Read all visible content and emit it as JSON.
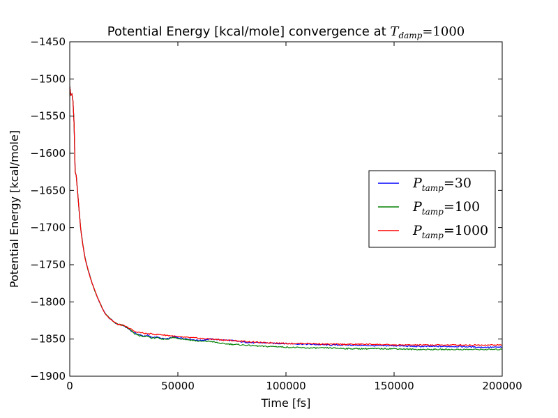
{
  "chart_data": {
    "type": "line",
    "title": {
      "text": "Potential Energy [kcal/mole] convergence at ",
      "math_symbol": "T",
      "math_subscript": "damp",
      "math_value": "=1000"
    },
    "xlabel": "Time [fs]",
    "ylabel": "Potential Energy [kcal/mole]",
    "xlim": [
      0,
      200000
    ],
    "ylim": [
      -1900,
      -1450
    ],
    "xticks": [
      0,
      50000,
      100000,
      150000,
      200000
    ],
    "xtick_labels": [
      "0",
      "50000",
      "100000",
      "150000",
      "200000"
    ],
    "yticks": [
      -1450,
      -1500,
      -1550,
      -1600,
      -1650,
      -1700,
      -1750,
      -1800,
      -1850,
      -1900
    ],
    "ytick_labels": [
      "−1450",
      "−1500",
      "−1550",
      "−1600",
      "−1650",
      "−1700",
      "−1750",
      "−1800",
      "−1850",
      "−1900"
    ],
    "grid": false,
    "legend_position": "center-right",
    "series": [
      {
        "name": "P_tamp=30",
        "legend_symbol": "P",
        "legend_subscript": "tamp",
        "legend_value": "=30",
        "color": "#0000ff",
        "x": [
          0,
          500,
          1000,
          1500,
          2000,
          2500,
          3000,
          4000,
          5000,
          6000,
          7000,
          8000,
          10000,
          12000,
          14000,
          16000,
          18000,
          20000,
          22000,
          25000,
          28000,
          30000,
          32000,
          34000,
          36000,
          38000,
          40000,
          42000,
          45000,
          48000,
          50000,
          55000,
          60000,
          65000,
          70000,
          75000,
          80000,
          85000,
          90000,
          95000,
          100000,
          110000,
          120000,
          130000,
          140000,
          150000,
          160000,
          170000,
          180000,
          190000,
          200000
        ],
        "y": [
          -1510,
          -1522,
          -1520,
          -1530,
          -1560,
          -1625,
          -1630,
          -1665,
          -1700,
          -1722,
          -1740,
          -1752,
          -1772,
          -1788,
          -1802,
          -1814,
          -1821,
          -1826,
          -1830,
          -1832,
          -1838,
          -1842,
          -1844,
          -1846,
          -1845,
          -1848,
          -1847,
          -1849,
          -1850,
          -1847,
          -1848,
          -1850,
          -1852,
          -1850,
          -1851,
          -1852,
          -1854,
          -1855,
          -1855,
          -1856,
          -1856,
          -1857,
          -1858,
          -1858,
          -1859,
          -1859,
          -1860,
          -1860,
          -1860,
          -1861,
          -1861
        ]
      },
      {
        "name": "P_tamp=100",
        "legend_symbol": "P",
        "legend_subscript": "tamp",
        "legend_value": "=100",
        "color": "#008000",
        "x": [
          0,
          500,
          1000,
          1500,
          2000,
          2500,
          3000,
          4000,
          5000,
          6000,
          7000,
          8000,
          10000,
          12000,
          14000,
          16000,
          18000,
          20000,
          22000,
          25000,
          28000,
          30000,
          32000,
          34000,
          36000,
          38000,
          40000,
          42000,
          45000,
          48000,
          50000,
          55000,
          60000,
          65000,
          70000,
          75000,
          80000,
          85000,
          90000,
          95000,
          100000,
          110000,
          120000,
          130000,
          140000,
          150000,
          160000,
          170000,
          180000,
          190000,
          200000
        ],
        "y": [
          -1510,
          -1522,
          -1520,
          -1530,
          -1560,
          -1625,
          -1630,
          -1665,
          -1700,
          -1722,
          -1740,
          -1752,
          -1772,
          -1788,
          -1802,
          -1814,
          -1821,
          -1826,
          -1830,
          -1832,
          -1838,
          -1843,
          -1845,
          -1847,
          -1846,
          -1849,
          -1848,
          -1850,
          -1850,
          -1848,
          -1849,
          -1851,
          -1853,
          -1853,
          -1856,
          -1857,
          -1858,
          -1859,
          -1860,
          -1860,
          -1861,
          -1862,
          -1862,
          -1863,
          -1863,
          -1863,
          -1864,
          -1864,
          -1864,
          -1864,
          -1864
        ]
      },
      {
        "name": "P_tamp=1000",
        "legend_symbol": "P",
        "legend_subscript": "tamp",
        "legend_value": "=1000",
        "color": "#ff0000",
        "x": [
          0,
          500,
          1000,
          1500,
          2000,
          2500,
          3000,
          4000,
          5000,
          6000,
          7000,
          8000,
          10000,
          12000,
          14000,
          16000,
          18000,
          20000,
          22000,
          25000,
          28000,
          30000,
          32000,
          34000,
          36000,
          38000,
          40000,
          42000,
          45000,
          48000,
          50000,
          55000,
          60000,
          65000,
          70000,
          75000,
          80000,
          85000,
          90000,
          95000,
          100000,
          110000,
          120000,
          130000,
          140000,
          150000,
          160000,
          170000,
          180000,
          190000,
          200000
        ],
        "y": [
          -1510,
          -1522,
          -1520,
          -1530,
          -1560,
          -1625,
          -1630,
          -1665,
          -1700,
          -1722,
          -1740,
          -1752,
          -1772,
          -1788,
          -1802,
          -1814,
          -1821,
          -1826,
          -1830,
          -1832,
          -1836,
          -1840,
          -1841,
          -1842,
          -1843,
          -1843,
          -1844,
          -1844,
          -1845,
          -1846,
          -1847,
          -1848,
          -1849,
          -1850,
          -1851,
          -1852,
          -1853,
          -1854,
          -1855,
          -1855,
          -1856,
          -1856,
          -1857,
          -1857,
          -1857,
          -1858,
          -1858,
          -1858,
          -1858,
          -1858,
          -1858
        ]
      }
    ]
  }
}
